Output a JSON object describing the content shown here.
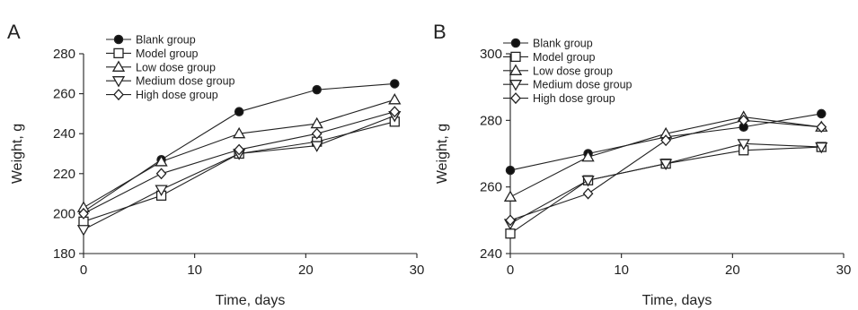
{
  "chart_data": [
    {
      "type": "line",
      "panel_label": "A",
      "xlabel": "Time, days",
      "ylabel": "Weight, g",
      "xlim": [
        0,
        30
      ],
      "ylim": [
        180,
        280
      ],
      "x_ticks": [
        0,
        10,
        20,
        30
      ],
      "y_ticks": [
        180,
        200,
        220,
        240,
        260,
        280
      ],
      "grid": false,
      "legend_position": "top-left",
      "x": [
        0,
        7,
        14,
        21,
        28
      ],
      "series": [
        {
          "name": "Blank group",
          "marker": "filled-circle",
          "values": [
            201,
            227,
            251,
            262,
            265
          ]
        },
        {
          "name": "Model group",
          "marker": "open-square",
          "values": [
            196,
            209,
            230,
            236,
            246
          ]
        },
        {
          "name": "Low dose group",
          "marker": "open-triangle-up",
          "values": [
            203,
            226,
            240,
            245,
            257
          ]
        },
        {
          "name": "Medium dose group",
          "marker": "open-triangle-down",
          "values": [
            192,
            212,
            230,
            234,
            249
          ]
        },
        {
          "name": "High dose group",
          "marker": "open-diamond",
          "values": [
            200,
            220,
            232,
            240,
            251
          ]
        }
      ]
    },
    {
      "type": "line",
      "panel_label": "B",
      "xlabel": "Time, days",
      "ylabel": "Weight, g",
      "xlim": [
        0,
        30
      ],
      "ylim": [
        240,
        300
      ],
      "x_ticks": [
        0,
        10,
        20,
        30
      ],
      "y_ticks": [
        240,
        260,
        280,
        300
      ],
      "grid": false,
      "legend_position": "top-left",
      "x": [
        0,
        7,
        14,
        21,
        28
      ],
      "series": [
        {
          "name": "Blank group",
          "marker": "filled-circle",
          "values": [
            265,
            270,
            275,
            278,
            282
          ]
        },
        {
          "name": "Model group",
          "marker": "open-square",
          "values": [
            246,
            262,
            267,
            271,
            272
          ]
        },
        {
          "name": "Low dose group",
          "marker": "open-triangle-up",
          "values": [
            257,
            269,
            276,
            281,
            278
          ]
        },
        {
          "name": "Medium dose group",
          "marker": "open-triangle-down",
          "values": [
            249,
            262,
            267,
            273,
            272
          ]
        },
        {
          "name": "High dose group",
          "marker": "open-diamond",
          "values": [
            250,
            258,
            274,
            280,
            278
          ]
        }
      ]
    }
  ]
}
